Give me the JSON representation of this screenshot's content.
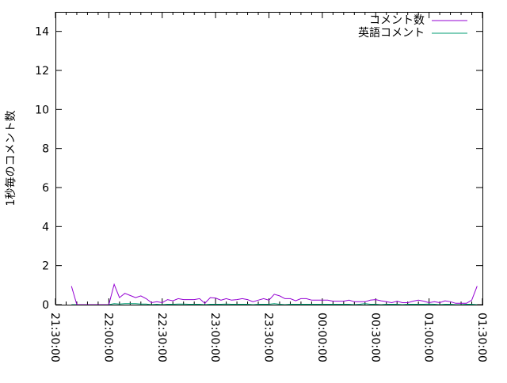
{
  "chart_data": {
    "type": "line",
    "title": "",
    "xlabel": "",
    "ylabel": "1秒毎のコメント数",
    "xlim": [
      "21:30:00",
      "01:30:00"
    ],
    "ylim": [
      0,
      15
    ],
    "y_ticks": [
      "0",
      "2",
      "4",
      "6",
      "8",
      "10",
      "12",
      "14"
    ],
    "x_ticks": [
      "21:30:00",
      "22:00:00",
      "22:30:00",
      "23:00:00",
      "23:30:00",
      "00:00:00",
      "00:30:00",
      "01:00:00",
      "01:30:00"
    ],
    "grid": false,
    "legend_position": "top-right",
    "x": [
      "21:39",
      "21:42",
      "21:45",
      "21:48",
      "21:51",
      "21:54",
      "21:57",
      "22:00",
      "22:03",
      "22:06",
      "22:09",
      "22:12",
      "22:15",
      "22:18",
      "22:21",
      "22:24",
      "22:27",
      "22:30",
      "22:33",
      "22:36",
      "22:39",
      "22:42",
      "22:45",
      "22:48",
      "22:51",
      "22:54",
      "22:57",
      "23:00",
      "23:03",
      "23:06",
      "23:09",
      "23:12",
      "23:15",
      "23:18",
      "23:21",
      "23:24",
      "23:27",
      "23:30",
      "23:33",
      "23:36",
      "23:39",
      "23:42",
      "23:45",
      "23:48",
      "23:51",
      "23:54",
      "23:57",
      "00:00",
      "00:03",
      "00:06",
      "00:09",
      "00:12",
      "00:15",
      "00:18",
      "00:21",
      "00:24",
      "00:27",
      "00:30",
      "00:33",
      "00:36",
      "00:39",
      "00:42",
      "00:45",
      "00:48",
      "00:51",
      "00:54",
      "00:57",
      "01:00",
      "01:03",
      "01:06",
      "01:09",
      "01:12",
      "01:15",
      "01:18",
      "01:21",
      "01:24",
      "01:27"
    ],
    "series": [
      {
        "name": "コメント数",
        "color": "#9400d3",
        "values": [
          0.95,
          0,
          0,
          0,
          0,
          0,
          0,
          0,
          1.04,
          0.36,
          0.58,
          0.47,
          0.36,
          0.45,
          0.31,
          0.1,
          0.15,
          0.1,
          0.26,
          0.2,
          0.31,
          0.26,
          0.26,
          0.26,
          0.31,
          0.07,
          0.36,
          0.34,
          0.23,
          0.31,
          0.23,
          0.26,
          0.31,
          0.26,
          0.15,
          0.23,
          0.31,
          0.23,
          0.53,
          0.45,
          0.31,
          0.31,
          0.2,
          0.31,
          0.31,
          0.23,
          0.23,
          0.23,
          0.23,
          0.18,
          0.18,
          0.18,
          0.23,
          0.15,
          0.15,
          0.15,
          0.23,
          0.26,
          0.2,
          0.15,
          0.1,
          0.18,
          0.1,
          0.1,
          0.18,
          0.23,
          0.18,
          0.1,
          0.15,
          0.1,
          0.2,
          0.15,
          0.07,
          0.07,
          0.07,
          0.23,
          0.95
        ]
      },
      {
        "name": "英語コメント",
        "color": "#009e73",
        "values": [
          0,
          0,
          0,
          0,
          0,
          0,
          0,
          0,
          0.05,
          0.03,
          0.05,
          0.05,
          0.05,
          0.03,
          0.03,
          0,
          0.02,
          0,
          0.02,
          0.02,
          0.03,
          0.03,
          0.02,
          0.02,
          0.02,
          0,
          0.02,
          0.02,
          0.02,
          0.03,
          0.02,
          0.02,
          0.02,
          0.02,
          0,
          0.02,
          0.02,
          0.02,
          0.05,
          0.02,
          0,
          0.02,
          0.02,
          0.02,
          0.02,
          0.02,
          0.02,
          0.02,
          0.02,
          0.02,
          0.02,
          0.02,
          0.02,
          0,
          0.02,
          0.05,
          0.02,
          0.02,
          0,
          0.02,
          0.02,
          0.02,
          0,
          0.02,
          0.02,
          0.02,
          0.02,
          0.03,
          0.02,
          0,
          0.02,
          0.02,
          0,
          0,
          0.02,
          0.02,
          0
        ]
      }
    ]
  }
}
